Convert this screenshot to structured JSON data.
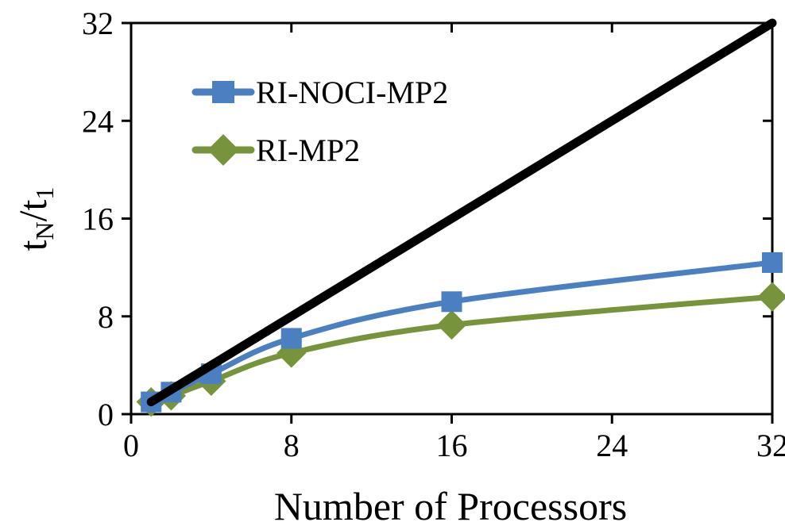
{
  "chart_data": {
    "type": "line",
    "xlabel": "Number of Processors",
    "ylabel": {
      "base": "t",
      "sub_num": "N",
      "sep": "/",
      "base2": "t",
      "sub_den": "1"
    },
    "xlim": [
      0,
      32
    ],
    "ylim": [
      0,
      32
    ],
    "xticks": [
      0,
      8,
      16,
      24,
      32
    ],
    "yticks": [
      0,
      8,
      16,
      24,
      32
    ],
    "grid": false,
    "legend_position": "top-left",
    "ideal_line": {
      "x": [
        1,
        32
      ],
      "y": [
        1,
        32
      ],
      "color": "#000000"
    },
    "series": [
      {
        "name": "RI-NOCI-MP2",
        "marker": "square",
        "color": "#4a7fc1",
        "x": [
          1,
          2,
          4,
          8,
          16,
          32
        ],
        "y": [
          1.0,
          1.8,
          3.3,
          6.2,
          9.2,
          12.4
        ]
      },
      {
        "name": "RI-MP2",
        "marker": "diamond",
        "color": "#77943c",
        "x": [
          1,
          2,
          4,
          8,
          16,
          32
        ],
        "y": [
          1.0,
          1.5,
          2.7,
          5.0,
          7.3,
          9.6
        ]
      }
    ]
  }
}
